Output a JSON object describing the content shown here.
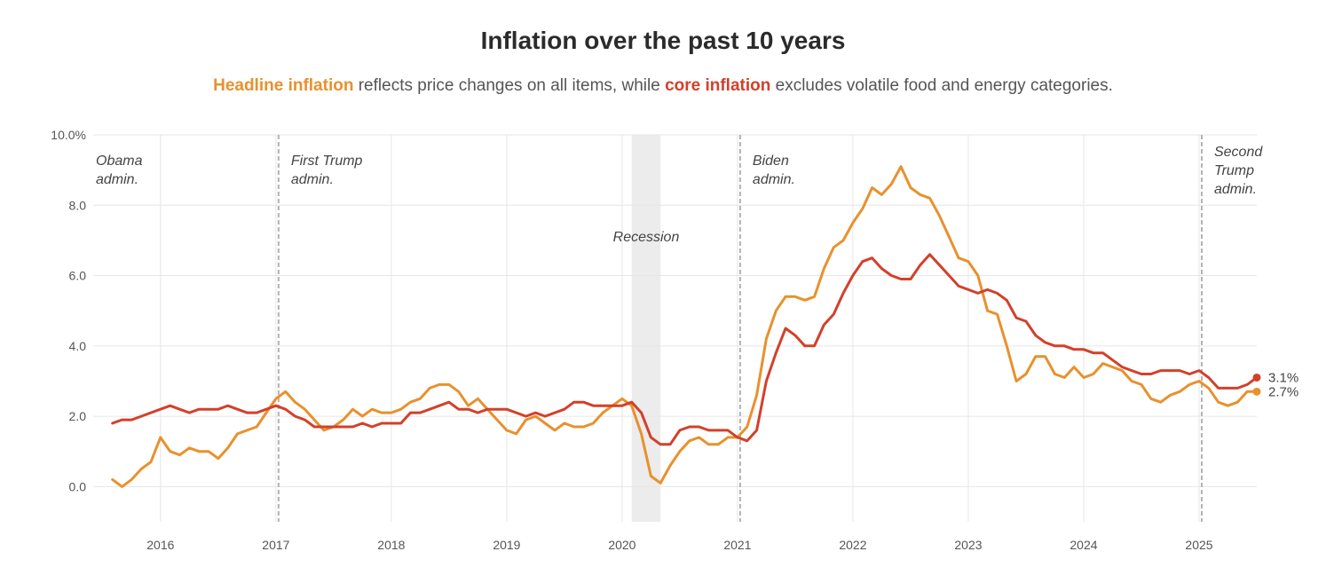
{
  "title": "Inflation over the past 10 years",
  "subtitle": {
    "headline_term": "Headline inflation",
    "mid_text": " reflects price changes on all items, while ",
    "core_term": "core inflation",
    "end_text": " excludes volatile food and energy categories."
  },
  "colors": {
    "headline": "#e8912d",
    "core": "#d3402a",
    "recession": "#ececec",
    "grid": "#e6e6e6",
    "admin_line": "#b3b3b3"
  },
  "chart_data": {
    "type": "line",
    "title": "Inflation over the past 10 years",
    "xlabel": "",
    "ylabel": "",
    "ylim": [
      -1.0,
      10.0
    ],
    "y_ticks": [
      {
        "value": 0,
        "label": "0.0"
      },
      {
        "value": 2,
        "label": "2.0"
      },
      {
        "value": 4,
        "label": "4.0"
      },
      {
        "value": 6,
        "label": "6.0"
      },
      {
        "value": 8,
        "label": "8.0"
      },
      {
        "value": 10,
        "label": "10.0%"
      }
    ],
    "x_range": [
      "2015-06",
      "2025-07"
    ],
    "x_ticks": [
      {
        "date": "2016-01",
        "label": "2016"
      },
      {
        "date": "2017-01",
        "label": "2017"
      },
      {
        "date": "2018-01",
        "label": "2018"
      },
      {
        "date": "2019-01",
        "label": "2019"
      },
      {
        "date": "2020-01",
        "label": "2020"
      },
      {
        "date": "2021-01",
        "label": "2021"
      },
      {
        "date": "2022-01",
        "label": "2022"
      },
      {
        "date": "2023-01",
        "label": "2023"
      },
      {
        "date": "2024-01",
        "label": "2024"
      },
      {
        "date": "2025-01",
        "label": "2025"
      }
    ],
    "grid": true,
    "start_month": "2015-08",
    "series": [
      {
        "name": "Headline inflation",
        "end_label": "2.7%",
        "values": [
          0.2,
          0.0,
          0.2,
          0.5,
          0.7,
          1.4,
          1.0,
          0.9,
          1.1,
          1.0,
          1.0,
          0.8,
          1.1,
          1.5,
          1.6,
          1.7,
          2.1,
          2.5,
          2.7,
          2.4,
          2.2,
          1.9,
          1.6,
          1.7,
          1.9,
          2.2,
          2.0,
          2.2,
          2.1,
          2.1,
          2.2,
          2.4,
          2.5,
          2.8,
          2.9,
          2.9,
          2.7,
          2.3,
          2.5,
          2.2,
          1.9,
          1.6,
          1.5,
          1.9,
          2.0,
          1.8,
          1.6,
          1.8,
          1.7,
          1.7,
          1.8,
          2.1,
          2.3,
          2.5,
          2.3,
          1.5,
          0.3,
          0.1,
          0.6,
          1.0,
          1.3,
          1.4,
          1.2,
          1.2,
          1.4,
          1.4,
          1.7,
          2.6,
          4.2,
          5.0,
          5.4,
          5.4,
          5.3,
          5.4,
          6.2,
          6.8,
          7.0,
          7.5,
          7.9,
          8.5,
          8.3,
          8.6,
          9.1,
          8.5,
          8.3,
          8.2,
          7.7,
          7.1,
          6.5,
          6.4,
          6.0,
          5.0,
          4.9,
          4.0,
          3.0,
          3.2,
          3.7,
          3.7,
          3.2,
          3.1,
          3.4,
          3.1,
          3.2,
          3.5,
          3.4,
          3.3,
          3.0,
          2.9,
          2.5,
          2.4,
          2.6,
          2.7,
          2.9,
          3.0,
          2.8,
          2.4,
          2.3,
          2.4,
          2.7,
          2.7
        ]
      },
      {
        "name": "Core inflation",
        "end_label": "3.1%",
        "values": [
          1.8,
          1.9,
          1.9,
          2.0,
          2.1,
          2.2,
          2.3,
          2.2,
          2.1,
          2.2,
          2.2,
          2.2,
          2.3,
          2.2,
          2.1,
          2.1,
          2.2,
          2.3,
          2.2,
          2.0,
          1.9,
          1.7,
          1.7,
          1.7,
          1.7,
          1.7,
          1.8,
          1.7,
          1.8,
          1.8,
          1.8,
          2.1,
          2.1,
          2.2,
          2.3,
          2.4,
          2.2,
          2.2,
          2.1,
          2.2,
          2.2,
          2.2,
          2.1,
          2.0,
          2.1,
          2.0,
          2.1,
          2.2,
          2.4,
          2.4,
          2.3,
          2.3,
          2.3,
          2.3,
          2.4,
          2.1,
          1.4,
          1.2,
          1.2,
          1.6,
          1.7,
          1.7,
          1.6,
          1.6,
          1.6,
          1.4,
          1.3,
          1.6,
          3.0,
          3.8,
          4.5,
          4.3,
          4.0,
          4.0,
          4.6,
          4.9,
          5.5,
          6.0,
          6.4,
          6.5,
          6.2,
          6.0,
          5.9,
          5.9,
          6.3,
          6.6,
          6.3,
          6.0,
          5.7,
          5.6,
          5.5,
          5.6,
          5.5,
          5.3,
          4.8,
          4.7,
          4.3,
          4.1,
          4.0,
          4.0,
          3.9,
          3.9,
          3.8,
          3.8,
          3.6,
          3.4,
          3.3,
          3.2,
          3.2,
          3.3,
          3.3,
          3.3,
          3.2,
          3.3,
          3.1,
          2.8,
          2.8,
          2.8,
          2.9,
          3.1
        ]
      }
    ],
    "annotations": {
      "recession": {
        "label": "Recession",
        "start": "2020-02",
        "end": "2020-04"
      },
      "admins": [
        {
          "lines": [
            "Obama",
            "admin."
          ],
          "date": null
        },
        {
          "lines": [
            "First Trump",
            "admin."
          ],
          "date": "2017-01"
        },
        {
          "lines": [
            "Biden",
            "admin."
          ],
          "date": "2021-01"
        },
        {
          "lines": [
            "Second",
            "Trump",
            "admin."
          ],
          "date": "2025-01"
        }
      ]
    }
  }
}
